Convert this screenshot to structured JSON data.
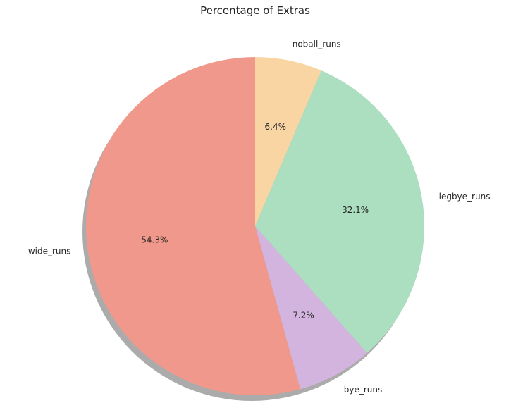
{
  "chart_data": {
    "type": "pie",
    "title": "Percentage of Extras",
    "categories": [
      "noball_runs",
      "legbye_runs",
      "bye_runs",
      "wide_runs"
    ],
    "values": [
      6.4,
      32.1,
      7.2,
      54.3
    ],
    "percent_labels": [
      "6.4%",
      "32.1%",
      "7.2%",
      "54.3%"
    ],
    "colors": [
      "#f9d5a3",
      "#abdfc0",
      "#d3b4df",
      "#f0988b"
    ],
    "start_angle_deg": 90,
    "direction": "clockwise",
    "shadow": true,
    "legend": "none"
  }
}
